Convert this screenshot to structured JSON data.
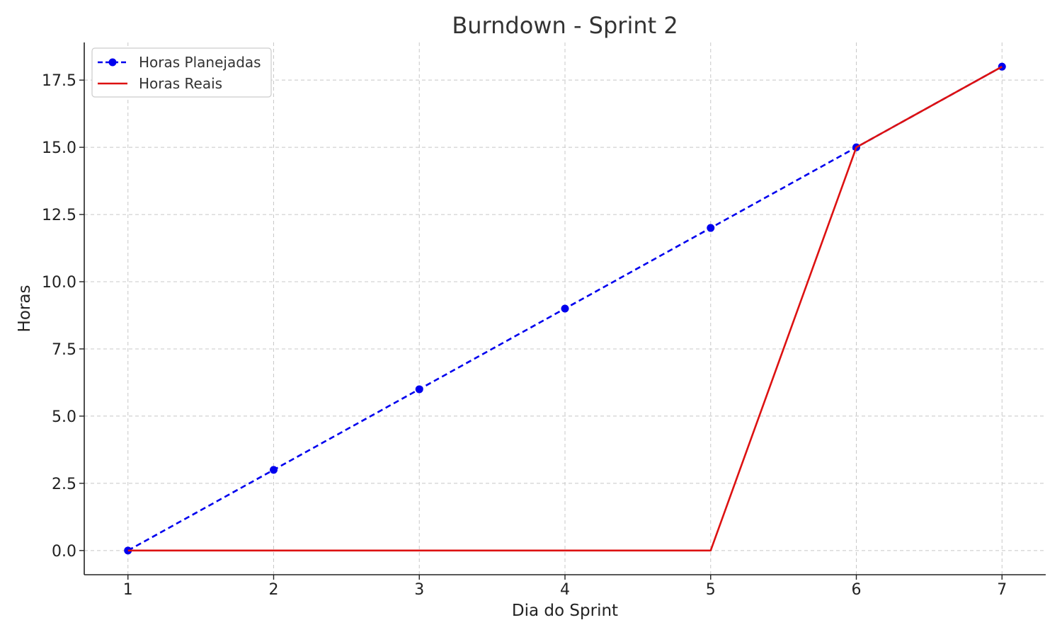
{
  "chart_data": {
    "type": "line",
    "title": "Burndown - Sprint 2",
    "xlabel": "Dia do Sprint",
    "ylabel": "Horas",
    "x": [
      1,
      2,
      3,
      4,
      5,
      6,
      7
    ],
    "xlim": [
      0.7,
      7.3
    ],
    "ylim": [
      -0.9,
      18.9
    ],
    "xticks": [
      "1",
      "2",
      "3",
      "4",
      "5",
      "6",
      "7"
    ],
    "yticks": [
      "0.0",
      "2.5",
      "5.0",
      "7.5",
      "10.0",
      "12.5",
      "15.0",
      "17.5"
    ],
    "grid": true,
    "legend_position": "top-left",
    "series": [
      {
        "name": "Horas Planejadas",
        "values": [
          0,
          3,
          6,
          9,
          12,
          15,
          18
        ],
        "color": "#0000ee",
        "style": "dashed",
        "marker": "circle"
      },
      {
        "name": "Horas Reais",
        "values": [
          0,
          0,
          0,
          0,
          0,
          15,
          18
        ],
        "color": "#dd1111",
        "style": "solid",
        "marker": "none"
      }
    ]
  }
}
